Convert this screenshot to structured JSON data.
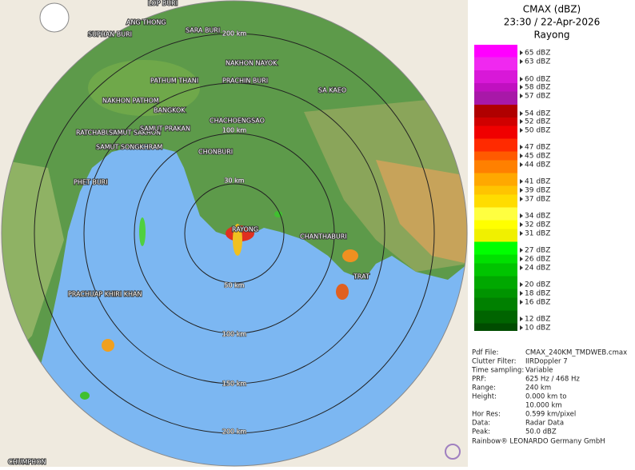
{
  "legend": {
    "title": "CMAX (dBZ)",
    "time": "23:30 / 22-Apr-2026",
    "site": "Rayong",
    "levels": [
      {
        "value": 65,
        "label": "65 dBZ",
        "color": "#ff00ff"
      },
      {
        "value": 63,
        "label": "63 dBZ",
        "color": "#f028f0"
      },
      {
        "value": 60,
        "label": "60 dBZ",
        "color": "#d818d8"
      },
      {
        "value": 58,
        "label": "58 dBZ",
        "color": "#c010c0"
      },
      {
        "value": 57,
        "label": "57 dBZ",
        "color": "#a818a8"
      },
      {
        "value": 54,
        "label": "54 dBZ",
        "color": "#b00000"
      },
      {
        "value": 52,
        "label": "52 dBZ",
        "color": "#d00000"
      },
      {
        "value": 50,
        "label": "50 dBZ",
        "color": "#f00000"
      },
      {
        "value": 47,
        "label": "47 dBZ",
        "color": "#ff2a00"
      },
      {
        "value": 45,
        "label": "45 dBZ",
        "color": "#ff5a00"
      },
      {
        "value": 44,
        "label": "44 dBZ",
        "color": "#ff8000"
      },
      {
        "value": 41,
        "label": "41 dBZ",
        "color": "#ffa800"
      },
      {
        "value": 39,
        "label": "39 dBZ",
        "color": "#ffc400"
      },
      {
        "value": 37,
        "label": "37 dBZ",
        "color": "#ffdc00"
      },
      {
        "value": 34,
        "label": "34 dBZ",
        "color": "#ffff40"
      },
      {
        "value": 32,
        "label": "32 dBZ",
        "color": "#ffff00"
      },
      {
        "value": 31,
        "label": "31 dBZ",
        "color": "#f0f000"
      },
      {
        "value": 27,
        "label": "27 dBZ",
        "color": "#00ff00"
      },
      {
        "value": 26,
        "label": "26 dBZ",
        "color": "#00e000"
      },
      {
        "value": 24,
        "label": "24 dBZ",
        "color": "#00c400"
      },
      {
        "value": 20,
        "label": "20 dBZ",
        "color": "#00a800"
      },
      {
        "value": 18,
        "label": "18 dBZ",
        "color": "#009400"
      },
      {
        "value": 16,
        "label": "16 dBZ",
        "color": "#008000"
      },
      {
        "value": 12,
        "label": "12 dBZ",
        "color": "#006400"
      },
      {
        "value": 10,
        "label": "10 dBZ",
        "color": "#004c00"
      }
    ]
  },
  "info": [
    [
      "Pdf File:",
      "CMAX_240KM_TMDWEB.cmax"
    ],
    [
      "Clutter Filter:",
      "IIRDoppler 7"
    ],
    [
      "Time sampling:",
      "Variable"
    ],
    [
      "PRF:",
      "625 Hz / 468 Hz"
    ],
    [
      "Range:",
      "240 km"
    ],
    [
      "Height:",
      "0.000 km to"
    ],
    [
      "",
      "10.000 km"
    ],
    [
      "Hor Res:",
      "0.599 km/pixel"
    ],
    [
      "Data:",
      "Radar Data"
    ],
    [
      "Peak:",
      "50.0 dBZ"
    ]
  ],
  "footer": "Rainbow® LEONARDO Germany GmbH",
  "map": {
    "rings_top": [
      "30 km",
      "100 km",
      "200 km"
    ],
    "rings_bottom": [
      "50 km",
      "100 km",
      "150 km",
      "200 km"
    ],
    "places": [
      "LOP BURI",
      "ANG THONG",
      "SUPHAN BURI",
      "SARA BURI",
      "NAKHON NAYOK",
      "PATHUM THANI",
      "PRACHIN BURI",
      "SA KAEO",
      "NAKHON PATHOM",
      "BANGKOK",
      "CHACHOENGSAO",
      "RATCHABURI",
      "SAMUT SAKHON",
      "SAMUT PRAKAN",
      "SAMUT SONGKHRAM",
      "CHONBURI",
      "PHET BURI",
      "RAYONG",
      "CHANTHABURI",
      "TRAT",
      "PRACHUAP KHIRI KHAN",
      "CHUMPHON"
    ]
  }
}
